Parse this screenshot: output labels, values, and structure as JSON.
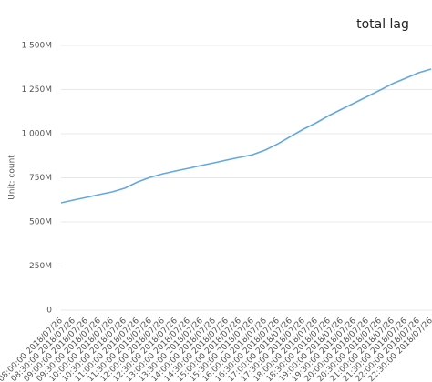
{
  "chart_data": {
    "type": "line",
    "title": "total lag",
    "y_label": "Unit: count",
    "categories": [
      "08:00:00 2018/07/26",
      "08:30:00 2018/07/26",
      "09:00:00 2018/07/26",
      "09:30:00 2018/07/26",
      "10:00:00 2018/07/26",
      "10:30:00 2018/07/26",
      "11:00:00 2018/07/26",
      "11:30:00 2018/07/26",
      "12:00:00 2018/07/26",
      "12:30:00 2018/07/26",
      "13:00:00 2018/07/26",
      "13:30:00 2018/07/26",
      "14:00:00 2018/07/26",
      "14:30:00 2018/07/26",
      "15:00:00 2018/07/26",
      "15:30:00 2018/07/26",
      "16:00:00 2018/07/26",
      "16:30:00 2018/07/26",
      "17:00:00 2018/07/26",
      "17:30:00 2018/07/26",
      "18:00:00 2018/07/26",
      "18:30:00 2018/07/26",
      "19:00:00 2018/07/26",
      "19:30:00 2018/07/26",
      "20:00:00 2018/07/26",
      "20:30:00 2018/07/26",
      "21:00:00 2018/07/26",
      "21:30:00 2018/07/26",
      "22:00:00 2018/07/26",
      "22:30:00 2018/07/26"
    ],
    "values": [
      608000000,
      624000000,
      639000000,
      655000000,
      670000000,
      691000000,
      727000000,
      753000000,
      773000000,
      789000000,
      804000000,
      820000000,
      835000000,
      851000000,
      866000000,
      881000000,
      907000000,
      943000000,
      985000000,
      1026000000,
      1062000000,
      1103000000,
      1139000000,
      1175000000,
      1211000000,
      1247000000,
      1284000000,
      1314000000,
      1345000000,
      1366000000
    ],
    "color": "#62a8e2",
    "ylim": [
      0,
      1500000000
    ],
    "yticks": [
      0,
      {
        "value": 250000000,
        "label": "250M"
      },
      {
        "value": 500000000,
        "label": "500M"
      },
      {
        "value": 750000000,
        "label": "750M"
      },
      {
        "value": 1000000000,
        "label": "1 000M"
      },
      {
        "value": 1250000000,
        "label": "1 250M"
      },
      {
        "value": 1500000000,
        "label": "1 500M"
      }
    ],
    "grid": true
  }
}
